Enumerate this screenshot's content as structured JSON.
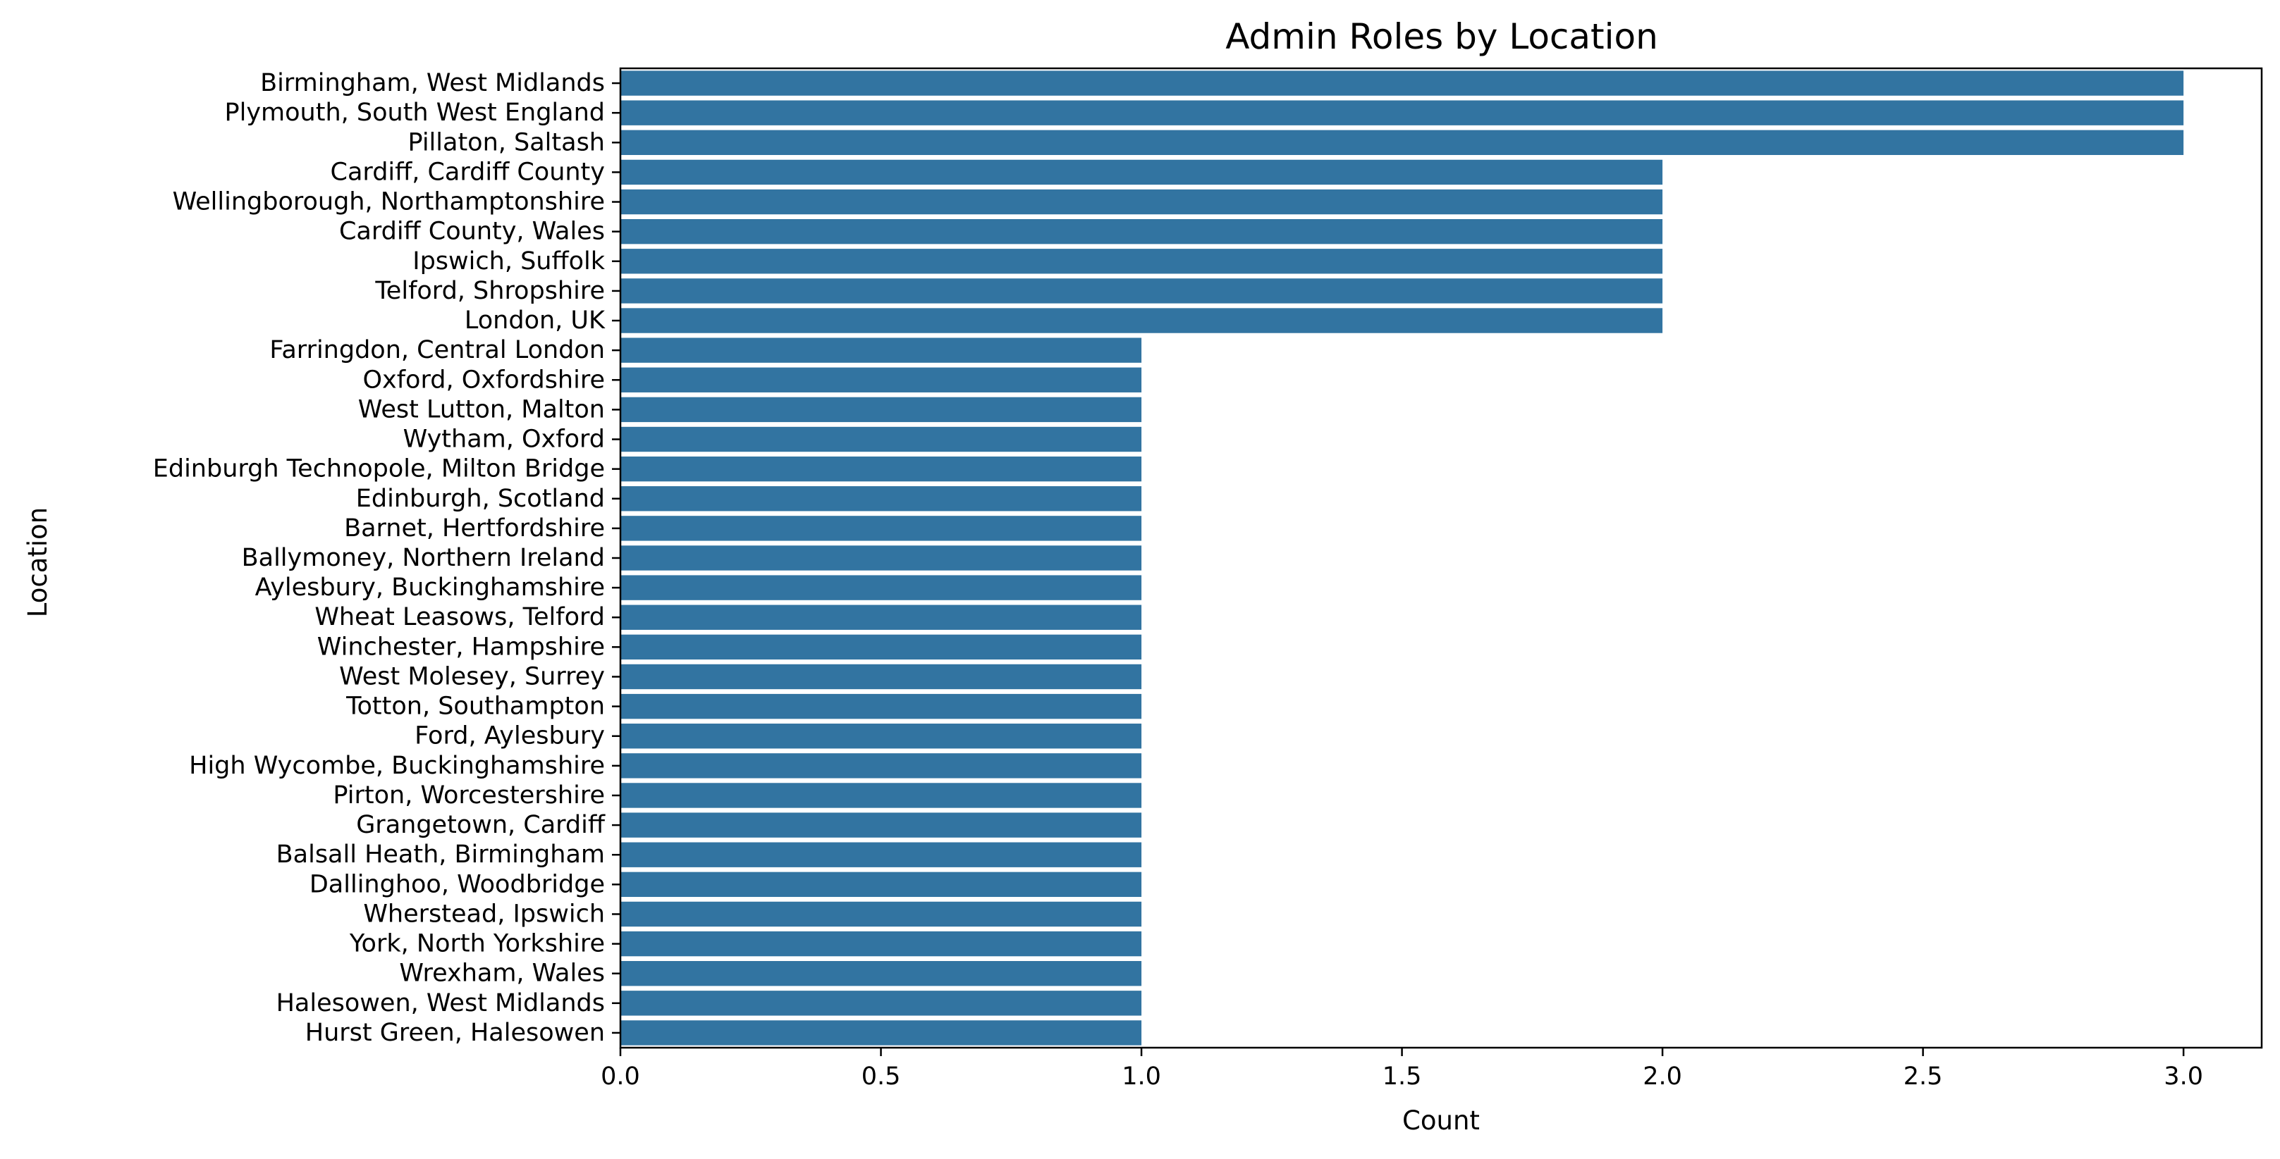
{
  "chart_data": {
    "type": "bar",
    "orientation": "horizontal",
    "title": "Admin Roles by Location",
    "xlabel": "Count",
    "ylabel": "Location",
    "xlim": [
      0,
      3.15
    ],
    "xticks": [
      0,
      0.5,
      1,
      1.5,
      2,
      2.5,
      3
    ],
    "xtick_labels": [
      "0.0",
      "0.5",
      "1.0",
      "1.5",
      "2.0",
      "2.5",
      "3.0"
    ],
    "grid": false,
    "bar_color": "#3274a1",
    "categories": [
      "Birmingham, West Midlands",
      "Plymouth, South West England",
      "Pillaton, Saltash",
      "Cardiff, Cardiff County",
      "Wellingborough, Northamptonshire",
      "Cardiff County, Wales",
      "Ipswich, Suffolk",
      "Telford, Shropshire",
      "London, UK",
      "Farringdon, Central London",
      "Oxford, Oxfordshire",
      "West Lutton, Malton",
      "Wytham, Oxford",
      "Edinburgh Technopole, Milton Bridge",
      "Edinburgh, Scotland",
      "Barnet, Hertfordshire",
      "Ballymoney, Northern Ireland",
      "Aylesbury, Buckinghamshire",
      "Wheat Leasows, Telford",
      "Winchester, Hampshire",
      "West Molesey, Surrey",
      "Totton, Southampton",
      "Ford, Aylesbury",
      "High Wycombe, Buckinghamshire",
      "Pirton, Worcestershire",
      "Grangetown, Cardiff",
      "Balsall Heath, Birmingham",
      "Dallinghoo, Woodbridge",
      "Wherstead, Ipswich",
      "York, North Yorkshire",
      "Wrexham, Wales",
      "Halesowen, West Midlands",
      "Hurst Green, Halesowen"
    ],
    "values": [
      3,
      3,
      3,
      2,
      2,
      2,
      2,
      2,
      2,
      1,
      1,
      1,
      1,
      1,
      1,
      1,
      1,
      1,
      1,
      1,
      1,
      1,
      1,
      1,
      1,
      1,
      1,
      1,
      1,
      1,
      1,
      1,
      1
    ]
  }
}
